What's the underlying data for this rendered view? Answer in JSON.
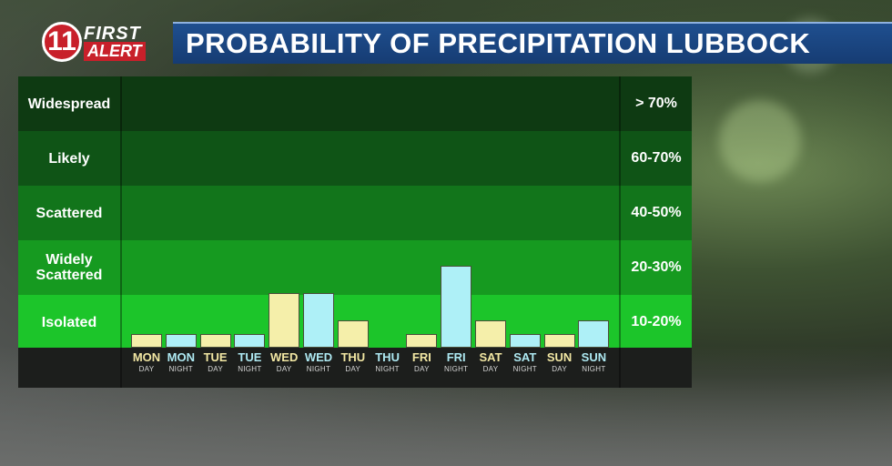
{
  "brand": {
    "logo_number": "11",
    "logo_line1": "FIRST",
    "logo_line2": "ALERT"
  },
  "title": "PROBABILITY OF PRECIPITATION LUBBOCK",
  "colors": {
    "day_bar": "#f5efaa",
    "night_bar": "#aef0f7",
    "title_bar": "#1a467f"
  },
  "bands": [
    {
      "label": "Widespread",
      "range": "> 70%",
      "color": "#0e3a12"
    },
    {
      "label": "Likely",
      "range": "60-70%",
      "color": "#0f5416"
    },
    {
      "label": "Scattered",
      "range": "40-50%",
      "color": "#12751b"
    },
    {
      "label": "Widely Scattered",
      "range": "20-30%",
      "color": "#169a20"
    },
    {
      "label": "Isolated",
      "range": "10-20%",
      "color": "#1cc52a"
    }
  ],
  "chart_data": {
    "type": "bar",
    "title": "PROBABILITY OF PRECIPITATION LUBBOCK",
    "ylim": [
      0,
      100
    ],
    "categories": [
      {
        "day": "MON",
        "period": "DAY"
      },
      {
        "day": "MON",
        "period": "NIGHT"
      },
      {
        "day": "TUE",
        "period": "DAY"
      },
      {
        "day": "TUE",
        "period": "NIGHT"
      },
      {
        "day": "WED",
        "period": "DAY"
      },
      {
        "day": "WED",
        "period": "NIGHT"
      },
      {
        "day": "THU",
        "period": "DAY"
      },
      {
        "day": "THU",
        "period": "NIGHT"
      },
      {
        "day": "FRI",
        "period": "DAY"
      },
      {
        "day": "FRI",
        "period": "NIGHT"
      },
      {
        "day": "SAT",
        "period": "DAY"
      },
      {
        "day": "SAT",
        "period": "NIGHT"
      },
      {
        "day": "SUN",
        "period": "DAY"
      },
      {
        "day": "SUN",
        "period": "NIGHT"
      }
    ],
    "values": [
      5,
      5,
      5,
      5,
      20,
      20,
      10,
      0,
      5,
      30,
      10,
      5,
      5,
      10
    ]
  }
}
